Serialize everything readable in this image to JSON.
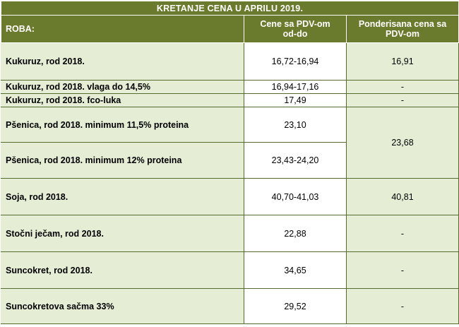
{
  "title": "KRETANJE CENA U APRILU 2019.",
  "header": {
    "roba": "ROBA:",
    "col_price_line1": "Cene sa PDV-om",
    "col_price_line2": "od-do",
    "col_weighted_line1": "Ponderisana cena sa",
    "col_weighted_line2": "PDV-om"
  },
  "rows": [
    {
      "name": "Kukuruz, rod 2018.",
      "range": "16,72-16,94",
      "weighted": "16,91"
    },
    {
      "name": "Kukuruz, rod 2018. vlaga do 14,5%",
      "range": "16,94-17,16",
      "weighted": "-"
    },
    {
      "name": "Kukuruz, rod 2018. fco-luka",
      "range": "17,49",
      "weighted": "-"
    },
    {
      "name": "Pšenica, rod 2018. minimum 11,5% proteina",
      "range": "23,10",
      "weighted": "23,68"
    },
    {
      "name": "Pšenica, rod 2018. minimum 12% proteina",
      "range": "23,43-24,20"
    },
    {
      "name": "Soja, rod 2018.",
      "range": "40,70-41,03",
      "weighted": "40,81"
    },
    {
      "name": "Stočni ječam,  rod 2018.",
      "range": "22,88",
      "weighted": "-"
    },
    {
      "name": "Suncokret, rod 2018.",
      "range": "34,65",
      "weighted": "-"
    },
    {
      "name": "Suncokretova sačma 33%",
      "range": "29,52",
      "weighted": "-"
    }
  ]
}
